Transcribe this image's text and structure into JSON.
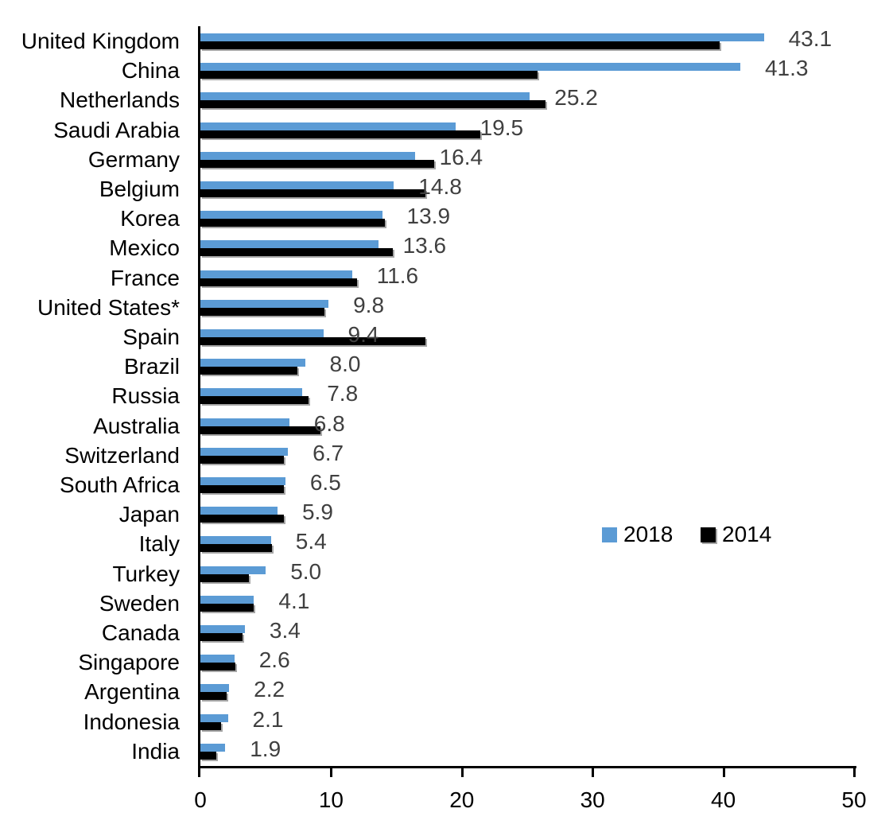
{
  "chart_data": {
    "type": "bar",
    "orientation": "horizontal",
    "title": "",
    "xlabel": "",
    "ylabel": "",
    "xlim": [
      0,
      50
    ],
    "x_tick_labels": [
      "0",
      "10",
      "20",
      "30",
      "40",
      "50"
    ],
    "x_tick_values": [
      0,
      10,
      20,
      30,
      40,
      50
    ],
    "grid": false,
    "legend_position": "center-right",
    "categories": [
      "United Kingdom",
      "China",
      "Netherlands",
      "Saudi Arabia",
      "Germany",
      "Belgium",
      "Korea",
      "Mexico",
      "France",
      "United States*",
      "Spain",
      "Brazil",
      "Russia",
      "Australia",
      "Switzerland",
      "South Africa",
      "Japan",
      "Italy",
      "Turkey",
      "Sweden",
      "Canada",
      "Singapore",
      "Argentina",
      "Indonesia",
      "India"
    ],
    "series": [
      {
        "name": "2014",
        "color": "#000000",
        "values": [
          39.7,
          25.8,
          26.4,
          21.4,
          17.9,
          17.2,
          14.1,
          14.7,
          12.0,
          9.5,
          17.2,
          7.4,
          8.3,
          9.2,
          6.4,
          6.4,
          6.4,
          5.5,
          3.7,
          4.1,
          3.2,
          2.7,
          2.0,
          1.6,
          1.2
        ]
      },
      {
        "name": "2018",
        "color": "#5B9BD5",
        "values": [
          43.1,
          41.3,
          25.2,
          19.5,
          16.4,
          14.8,
          13.9,
          13.6,
          11.6,
          9.8,
          9.4,
          8.0,
          7.8,
          6.8,
          6.7,
          6.5,
          5.9,
          5.4,
          5.0,
          4.1,
          3.4,
          2.6,
          2.2,
          2.1,
          1.9
        ]
      }
    ],
    "data_labels": {
      "for_series": "2018",
      "color": "#404040",
      "values": [
        "43.1",
        "41.3",
        "25.2",
        "19.5",
        "16.4",
        "14.8",
        "13.9",
        "13.6",
        "11.6",
        "9.8",
        "9.4",
        "8.0",
        "7.8",
        "6.8",
        "6.7",
        "6.5",
        "5.9",
        "5.4",
        "5.0",
        "4.1",
        "3.4",
        "2.6",
        "2.2",
        "2.1",
        "1.9"
      ]
    },
    "legend": {
      "entries": [
        {
          "label": "2018",
          "color": "#5B9BD5"
        },
        {
          "label": "2014",
          "color": "#000000"
        }
      ]
    },
    "colors": {
      "axis": "#000000",
      "data_label": "#404040",
      "shadow": "#A6A6A6",
      "background": "#FFFFFF"
    }
  }
}
